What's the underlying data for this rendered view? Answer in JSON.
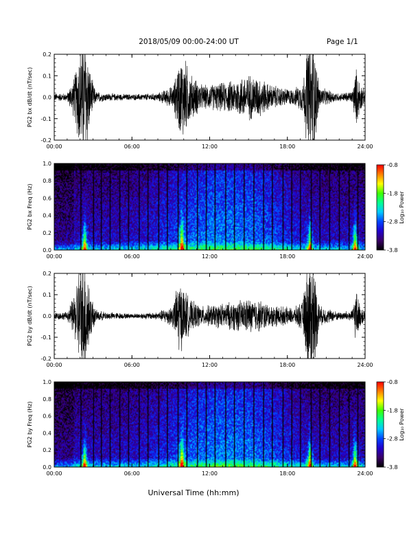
{
  "header": {
    "title": "2018/05/09   00:00-24:00 UT",
    "page": "Page 1/1"
  },
  "footer": {
    "xlabel": "Universal Time (hh:mm)"
  },
  "colorbar": {
    "label": "Log₁₀ Power",
    "ticks": [
      "-0.8",
      "-1.8",
      "-2.8",
      "-3.8"
    ],
    "range": [
      -3.8,
      -0.8
    ],
    "colormap": [
      "#000000",
      "#3a0066",
      "#2200cc",
      "#0044ff",
      "#00c8ff",
      "#00ff90",
      "#40ff00",
      "#ffff00",
      "#ff8000",
      "#ff0000"
    ]
  },
  "chart_data": [
    {
      "type": "line",
      "ylabel": "PG2 bx dB/dt (nT/sec)",
      "xlim": [
        0,
        24
      ],
      "ylim": [
        -0.2,
        0.2
      ],
      "xticks": [
        "00:00",
        "06:00",
        "12:00",
        "18:00",
        "24:00"
      ],
      "yticks": [
        "0.2",
        "0.1",
        "0.0",
        "-0.1",
        "-0.2"
      ],
      "color": "#000000",
      "envelope": {
        "x_hours": [
          0,
          1,
          1.6,
          2.0,
          2.5,
          2.8,
          3.2,
          4,
          6,
          8,
          9.2,
          9.6,
          10.0,
          10.5,
          11.5,
          12.5,
          13.5,
          15,
          16,
          16.5,
          17.5,
          18.5,
          19.2,
          19.6,
          20.0,
          20.5,
          22,
          23.0,
          23.3,
          23.6,
          24
        ],
        "amplitude": [
          0.02,
          0.02,
          0.12,
          0.3,
          0.3,
          0.12,
          0.03,
          0.02,
          0.015,
          0.02,
          0.06,
          0.18,
          0.22,
          0.12,
          0.06,
          0.07,
          0.08,
          0.12,
          0.1,
          0.07,
          0.05,
          0.04,
          0.08,
          0.3,
          0.3,
          0.05,
          0.02,
          0.03,
          0.15,
          0.08,
          0.03
        ]
      }
    },
    {
      "type": "heatmap",
      "ylabel": "PG2 bx Freq (Hz)",
      "xlim": [
        0,
        24
      ],
      "ylim": [
        0,
        1.0
      ],
      "xticks": [
        "00:00",
        "06:00",
        "12:00",
        "18:00",
        "24:00"
      ],
      "yticks": [
        "1.0",
        "0.8",
        "0.6",
        "0.4",
        "0.2",
        "0.0"
      ],
      "crange": [
        -3.8,
        -0.8
      ],
      "dark_line_hours": [
        2.0,
        3.0,
        3.6,
        4.3,
        5.0,
        5.7,
        6.5,
        7.2,
        8.0,
        8.7,
        9.5,
        10.2,
        11.0,
        11.7,
        12.4,
        13.2,
        13.9,
        14.6,
        15.4,
        16.1,
        16.8,
        17.6,
        18.3,
        19.0,
        19.8,
        20.5,
        21.2,
        22.0,
        22.7,
        23.4
      ],
      "bright_hours": [
        2.3,
        9.8,
        19.7,
        23.2
      ]
    },
    {
      "type": "line",
      "ylabel": "PG2 by dB/dt (nT/sec)",
      "xlim": [
        0,
        24
      ],
      "ylim": [
        -0.2,
        0.2
      ],
      "xticks": [
        "00:00",
        "06:00",
        "12:00",
        "18:00",
        "24:00"
      ],
      "yticks": [
        "0.2",
        "0.1",
        "0.0",
        "-0.1",
        "-0.2"
      ],
      "color": "#000000",
      "envelope": {
        "x_hours": [
          0,
          1,
          1.6,
          2.0,
          2.5,
          2.8,
          3.2,
          4,
          6,
          8,
          9.2,
          9.6,
          10.0,
          10.5,
          11.5,
          12.5,
          13.5,
          15,
          16,
          16.5,
          17.5,
          18.5,
          19.2,
          19.6,
          20.0,
          20.5,
          22,
          23.0,
          23.3,
          23.6,
          24
        ],
        "amplitude": [
          0.02,
          0.02,
          0.12,
          0.3,
          0.3,
          0.12,
          0.03,
          0.02,
          0.012,
          0.02,
          0.06,
          0.2,
          0.15,
          0.08,
          0.05,
          0.06,
          0.07,
          0.09,
          0.08,
          0.06,
          0.05,
          0.04,
          0.08,
          0.3,
          0.3,
          0.05,
          0.02,
          0.03,
          0.14,
          0.06,
          0.03
        ]
      }
    },
    {
      "type": "heatmap",
      "ylabel": "PG2 by Freq (Hz)",
      "xlim": [
        0,
        24
      ],
      "ylim": [
        0,
        1.0
      ],
      "xticks": [
        "00:00",
        "06:00",
        "12:00",
        "18:00",
        "24:00"
      ],
      "yticks": [
        "1.0",
        "0.8",
        "0.6",
        "0.4",
        "0.2",
        "0.0"
      ],
      "crange": [
        -3.8,
        -0.8
      ],
      "dark_line_hours": [
        2.0,
        3.0,
        3.6,
        4.3,
        5.0,
        5.7,
        6.5,
        7.2,
        8.0,
        8.7,
        9.5,
        10.2,
        11.0,
        11.7,
        12.4,
        13.2,
        13.9,
        14.6,
        15.4,
        16.1,
        16.8,
        17.6,
        18.3,
        19.0,
        19.8,
        20.5,
        21.2,
        22.0,
        22.7,
        23.4
      ],
      "bright_hours": [
        2.3,
        9.8,
        19.7,
        23.2
      ]
    }
  ]
}
